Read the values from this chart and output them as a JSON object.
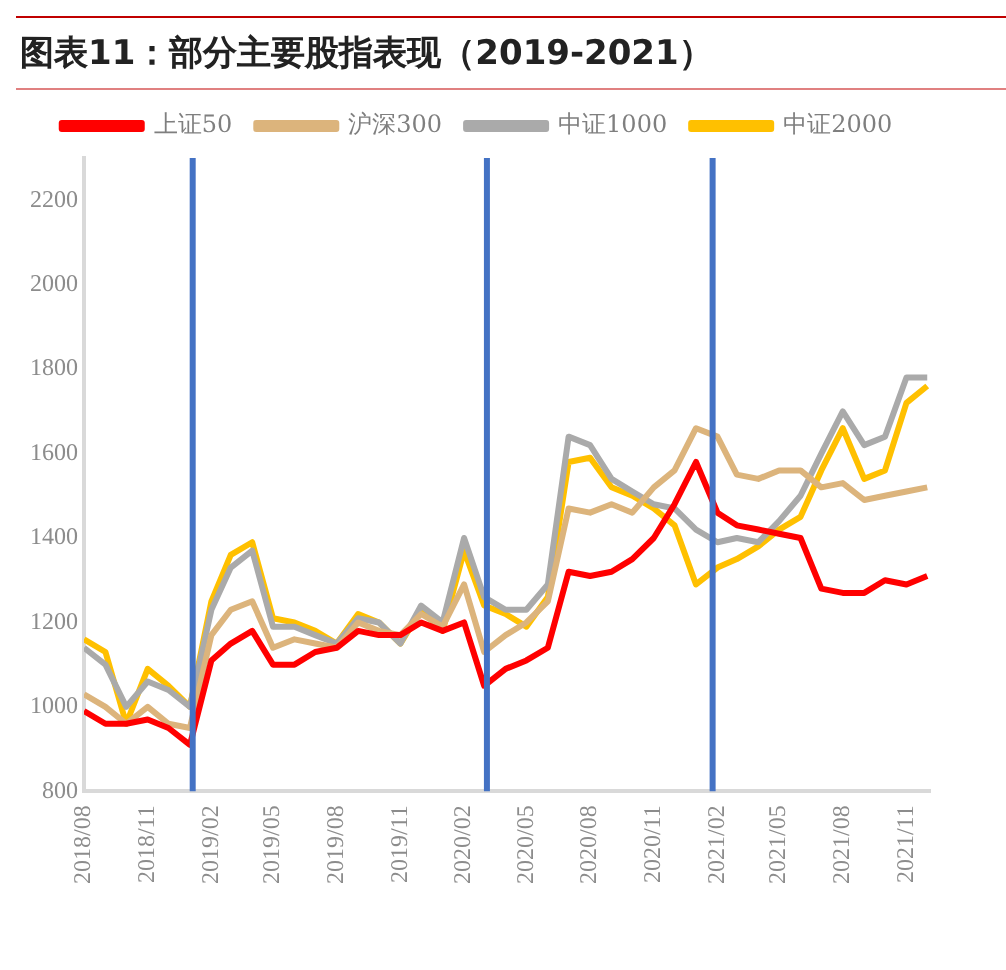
{
  "chart_data": {
    "type": "line",
    "title": "图表11：部分主要股指表现（2019-2021）",
    "x": [
      "2018-08-01",
      "2018-09-01",
      "2018-10-01",
      "2018-11-01",
      "2018-12-01",
      "2019-01-01",
      "2019-02-01",
      "2019-03-01",
      "2019-04-01",
      "2019-05-01",
      "2019-06-01",
      "2019-07-01",
      "2019-08-01",
      "2019-09-01",
      "2019-10-01",
      "2019-11-01",
      "2019-12-01",
      "2020-01-01",
      "2020-02-01",
      "2020-03-01",
      "2020-04-01",
      "2020-05-01",
      "2020-06-01",
      "2020-07-01",
      "2020-08-01",
      "2020-09-01",
      "2020-10-01",
      "2020-11-01",
      "2020-12-01",
      "2021-01-01",
      "2021-02-01",
      "2021-03-01",
      "2021-04-01",
      "2021-05-01",
      "2021-06-01",
      "2021-07-01",
      "2021-08-01",
      "2021-09-01",
      "2021-10-01",
      "2021-11-01",
      "2021-12-01"
    ],
    "series": [
      {
        "name": "上证50",
        "color": "#ff0000",
        "values": [
          990,
          960,
          960,
          970,
          950,
          910,
          1110,
          1150,
          1180,
          1100,
          1100,
          1130,
          1140,
          1180,
          1170,
          1170,
          1200,
          1180,
          1200,
          1050,
          1090,
          1110,
          1140,
          1320,
          1310,
          1320,
          1350,
          1400,
          1480,
          1580,
          1460,
          1430,
          1420,
          1410,
          1400,
          1280,
          1270,
          1270,
          1300,
          1290,
          1310
        ]
      },
      {
        "name": "沪深300",
        "color": "#dcb47c",
        "values": [
          1030,
          1000,
          960,
          1000,
          960,
          950,
          1170,
          1230,
          1250,
          1140,
          1160,
          1150,
          1140,
          1200,
          1180,
          1170,
          1220,
          1190,
          1290,
          1130,
          1170,
          1200,
          1250,
          1470,
          1460,
          1480,
          1460,
          1520,
          1560,
          1660,
          1640,
          1550,
          1540,
          1560,
          1560,
          1520,
          1530,
          1490,
          1500,
          1510,
          1520
        ]
      },
      {
        "name": "中证1000",
        "color": "#aaaaaa",
        "values": [
          1140,
          1100,
          1000,
          1060,
          1040,
          1000,
          1230,
          1330,
          1370,
          1190,
          1190,
          1170,
          1150,
          1210,
          1200,
          1150,
          1240,
          1200,
          1400,
          1260,
          1230,
          1230,
          1290,
          1640,
          1620,
          1540,
          1510,
          1480,
          1470,
          1420,
          1390,
          1400,
          1390,
          1440,
          1500,
          1600,
          1700,
          1620,
          1640,
          1780,
          1780
        ]
      },
      {
        "name": "中证2000",
        "color": "#ffc000",
        "values": [
          1160,
          1130,
          960,
          1090,
          1050,
          1000,
          1250,
          1360,
          1390,
          1210,
          1200,
          1180,
          1150,
          1220,
          1200,
          1150,
          1230,
          1180,
          1370,
          1240,
          1220,
          1190,
          1260,
          1580,
          1590,
          1520,
          1500,
          1470,
          1430,
          1290,
          1330,
          1350,
          1380,
          1420,
          1450,
          1560,
          1660,
          1540,
          1560,
          1720,
          1760
        ]
      }
    ],
    "xlim": [
      "2018-08-01",
      "2021-12-05"
    ],
    "xticks": [
      {
        "value": "2018-08-01",
        "label": "2018/08"
      },
      {
        "value": "2018-11-01",
        "label": "2018/11"
      },
      {
        "value": "2019-02-01",
        "label": "2019/02"
      },
      {
        "value": "2019-05-01",
        "label": "2019/05"
      },
      {
        "value": "2019-08-01",
        "label": "2019/08"
      },
      {
        "value": "2019-11-01",
        "label": "2019/11"
      },
      {
        "value": "2020-02-01",
        "label": "2020/02"
      },
      {
        "value": "2020-05-01",
        "label": "2020/05"
      },
      {
        "value": "2020-08-01",
        "label": "2020/08"
      },
      {
        "value": "2020-11-01",
        "label": "2020/11"
      },
      {
        "value": "2021-02-01",
        "label": "2021/02"
      },
      {
        "value": "2021-05-01",
        "label": "2021/05"
      },
      {
        "value": "2021-08-01",
        "label": "2021/08"
      },
      {
        "value": "2021-11-01",
        "label": "2021/11"
      }
    ],
    "ylim": [
      800,
      2300
    ],
    "yticks": [
      800,
      1000,
      1200,
      1400,
      1600,
      1800,
      2000,
      2200
    ],
    "ref_lines": [
      {
        "axis": "x",
        "value": "2019-01-05",
        "color": "#4472c4"
      },
      {
        "axis": "x",
        "value": "2020-03-05",
        "color": "#4472c4"
      },
      {
        "axis": "x",
        "value": "2021-01-25",
        "color": "#4472c4"
      }
    ],
    "grid": false,
    "legend": "top",
    "marker": "none",
    "line_style": "solid"
  }
}
